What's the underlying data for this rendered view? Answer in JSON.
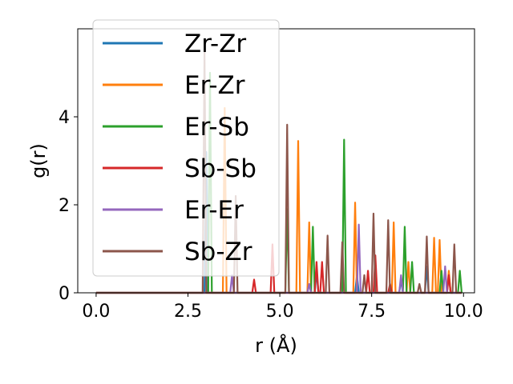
{
  "chart_data": {
    "type": "line",
    "xlabel": "r (Å)",
    "ylabel": "g(r)",
    "xlim": [
      -0.5,
      10.3
    ],
    "ylim": [
      0,
      6.0
    ],
    "xticks": [
      0.0,
      2.5,
      5.0,
      7.5,
      10.0
    ],
    "xtick_labels": [
      "0.0",
      "2.5",
      "5.0",
      "7.5",
      "10.0"
    ],
    "yticks": [
      0,
      2,
      4
    ],
    "ytick_labels": [
      "0",
      "2",
      "4"
    ],
    "legend_position": "upper-left",
    "grid": false,
    "series": [
      {
        "name": "Zr-Zr",
        "color": "#1f77b4",
        "peaks": [
          [
            3.0,
            3.2
          ],
          [
            6.0,
            0.5
          ],
          [
            7.1,
            0.4
          ],
          [
            8.3,
            0.3
          ],
          [
            9.0,
            0.6
          ],
          [
            9.6,
            0.4
          ]
        ]
      },
      {
        "name": "Er-Zr",
        "color": "#ff7f0e",
        "peaks": [
          [
            3.5,
            4.2
          ],
          [
            5.5,
            3.45
          ],
          [
            5.8,
            1.6
          ],
          [
            7.05,
            2.05
          ],
          [
            8.1,
            1.6
          ],
          [
            8.5,
            0.7
          ],
          [
            9.2,
            1.25
          ],
          [
            9.35,
            1.2
          ],
          [
            9.6,
            0.5
          ]
        ]
      },
      {
        "name": "Er-Sb",
        "color": "#2ca02c",
        "peaks": [
          [
            3.1,
            5.0
          ],
          [
            5.2,
            1.9
          ],
          [
            5.9,
            1.5
          ],
          [
            6.75,
            3.48
          ],
          [
            8.4,
            1.5
          ],
          [
            8.6,
            0.7
          ],
          [
            9.4,
            0.5
          ],
          [
            9.9,
            0.5
          ]
        ]
      },
      {
        "name": "Sb-Sb",
        "color": "#d62728",
        "peaks": [
          [
            4.3,
            0.3
          ],
          [
            4.8,
            1.1
          ],
          [
            6.0,
            0.7
          ],
          [
            6.15,
            0.7
          ],
          [
            7.4,
            0.5
          ],
          [
            7.6,
            0.85
          ],
          [
            8.0,
            0.2
          ],
          [
            9.6,
            0.4
          ]
        ]
      },
      {
        "name": "Er-Er",
        "color": "#9467bd",
        "peaks": [
          [
            3.7,
            0.4
          ],
          [
            5.8,
            0.2
          ],
          [
            7.15,
            1.55
          ],
          [
            8.3,
            0.4
          ],
          [
            9.5,
            0.6
          ]
        ]
      },
      {
        "name": "Sb-Zr",
        "color": "#8c564b",
        "peaks": [
          [
            2.95,
            5.5
          ],
          [
            3.8,
            2.2
          ],
          [
            5.2,
            3.82
          ],
          [
            6.3,
            1.3
          ],
          [
            6.7,
            1.15
          ],
          [
            7.3,
            0.4
          ],
          [
            7.55,
            1.8
          ],
          [
            7.95,
            1.65
          ],
          [
            8.8,
            0.2
          ],
          [
            9.0,
            1.28
          ],
          [
            9.75,
            1.1
          ]
        ]
      }
    ]
  }
}
